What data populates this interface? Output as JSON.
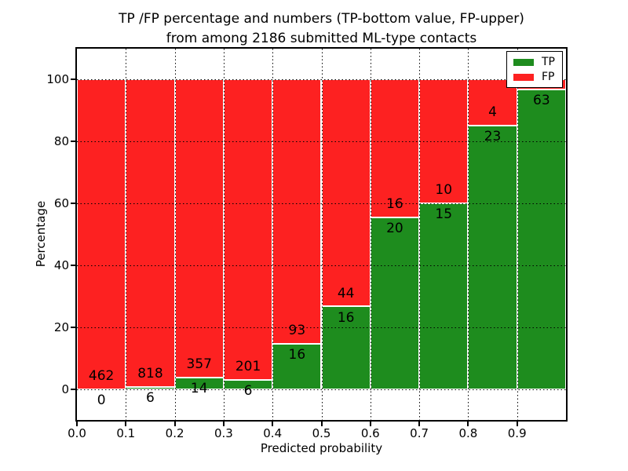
{
  "chart_data": {
    "type": "stacked_bar",
    "title_line1": "TP /FP percentage and numbers (TP-bottom value, FP-upper)",
    "title_line2": "from among 2186 submitted ML-type contacts",
    "xlabel": "Predicted probability",
    "ylabel": "Percentage",
    "xlim": [
      0.0,
      1.0
    ],
    "ylim": [
      -10,
      110
    ],
    "xtick_labels": [
      "0.0",
      "0.1",
      "0.2",
      "0.3",
      "0.4",
      "0.5",
      "0.6",
      "0.7",
      "0.8",
      "0.9"
    ],
    "ytick_values": [
      0,
      20,
      40,
      60,
      80,
      100
    ],
    "grid_style": "dotted",
    "bars_normalized_to": 100,
    "colors": {
      "tp": "#1e8c1e",
      "fp": "#fd2121"
    },
    "legend": {
      "position": "upper right",
      "entries": [
        {
          "label": "TP",
          "series": "tp"
        },
        {
          "label": "FP",
          "series": "fp"
        }
      ]
    },
    "bins": [
      {
        "range": [
          0.0,
          0.1
        ],
        "tp": 0,
        "fp": 462,
        "tp_pct": 0.0
      },
      {
        "range": [
          0.1,
          0.2
        ],
        "tp": 6,
        "fp": 818,
        "tp_pct": 0.73
      },
      {
        "range": [
          0.2,
          0.3
        ],
        "tp": 14,
        "fp": 357,
        "tp_pct": 3.77
      },
      {
        "range": [
          0.3,
          0.4
        ],
        "tp": 6,
        "fp": 201,
        "tp_pct": 2.9
      },
      {
        "range": [
          0.4,
          0.5
        ],
        "tp": 16,
        "fp": 93,
        "tp_pct": 14.68
      },
      {
        "range": [
          0.5,
          0.6
        ],
        "tp": 16,
        "fp": 44,
        "tp_pct": 26.67
      },
      {
        "range": [
          0.6,
          0.7
        ],
        "tp": 20,
        "fp": 16,
        "tp_pct": 55.56
      },
      {
        "range": [
          0.7,
          0.8
        ],
        "tp": 15,
        "fp": 10,
        "tp_pct": 60.0
      },
      {
        "range": [
          0.8,
          0.9
        ],
        "tp": 23,
        "fp": 4,
        "tp_pct": 85.19
      },
      {
        "range": [
          0.9,
          1.0
        ],
        "tp": 63,
        "fp": null,
        "tp_pct": 96.9
      }
    ]
  }
}
